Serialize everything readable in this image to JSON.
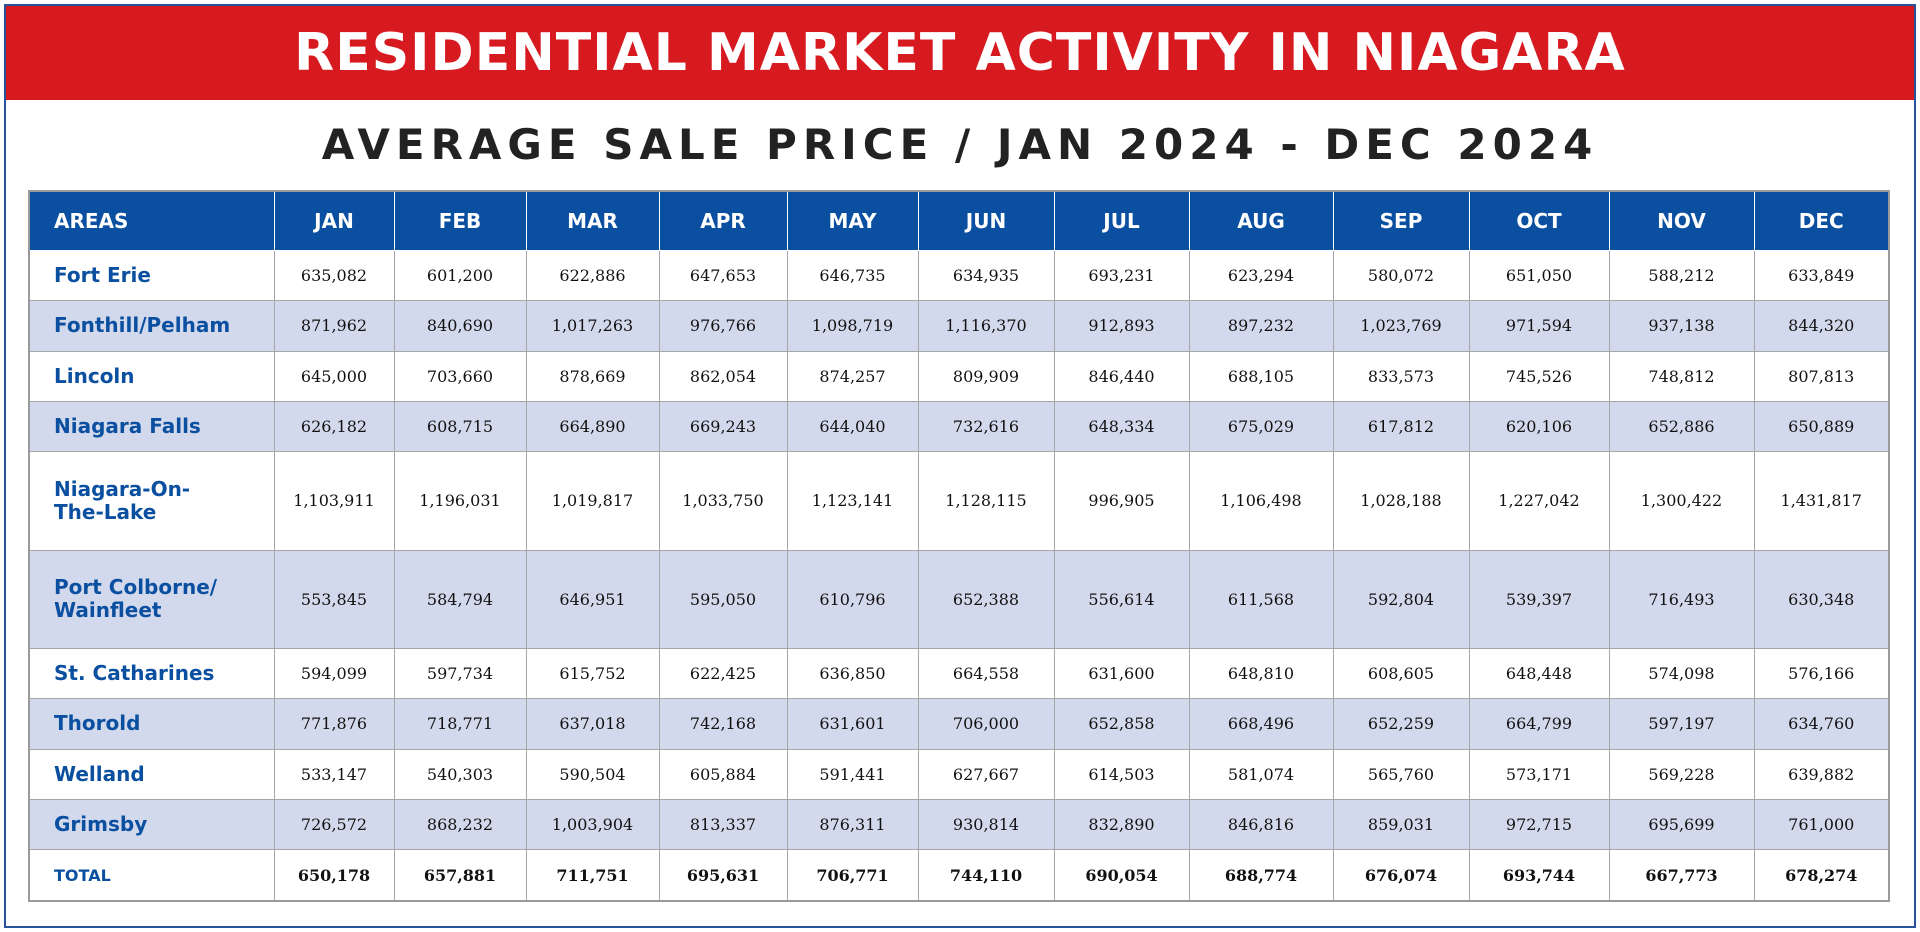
{
  "title": "RESIDENTIAL MARKET ACTIVITY IN NIAGARA",
  "subtitle": "AVERAGE SALE PRICE / JAN 2024 - DEC 2024",
  "colors": {
    "banner": "#d71920",
    "header": "#0a4fa0",
    "alt_row": "#d3d9ec",
    "area_text": "#0a4fa0"
  },
  "table": {
    "headers": [
      "AREAS",
      "JAN",
      "FEB",
      "MAR",
      "APR",
      "MAY",
      "JUN",
      "JUL",
      "AUG",
      "SEP",
      "OCT",
      "NOV",
      "DEC"
    ],
    "rows": [
      {
        "area": [
          "Fort Erie"
        ],
        "values": [
          "635,082",
          "601,200",
          "622,886",
          "647,653",
          "646,735",
          "634,935",
          "693,231",
          "623,294",
          "580,072",
          "651,050",
          "588,212",
          "633,849"
        ]
      },
      {
        "area": [
          "Fonthill/Pelham"
        ],
        "values": [
          "871,962",
          "840,690",
          "1,017,263",
          "976,766",
          "1,098,719",
          "1,116,370",
          "912,893",
          "897,232",
          "1,023,769",
          "971,594",
          "937,138",
          "844,320"
        ]
      },
      {
        "area": [
          "Lincoln"
        ],
        "values": [
          "645,000",
          "703,660",
          "878,669",
          "862,054",
          "874,257",
          "809,909",
          "846,440",
          "688,105",
          "833,573",
          "745,526",
          "748,812",
          "807,813"
        ]
      },
      {
        "area": [
          "Niagara Falls"
        ],
        "values": [
          "626,182",
          "608,715",
          "664,890",
          "669,243",
          "644,040",
          "732,616",
          "648,334",
          "675,029",
          "617,812",
          "620,106",
          "652,886",
          "650,889"
        ]
      },
      {
        "area": [
          "Niagara-On-",
          "The-Lake"
        ],
        "values": [
          "1,103,911",
          "1,196,031",
          "1,019,817",
          "1,033,750",
          "1,123,141",
          "1,128,115",
          "996,905",
          "1,106,498",
          "1,028,188",
          "1,227,042",
          "1,300,422",
          "1,431,817"
        ]
      },
      {
        "area": [
          "Port Colborne/",
          "Wainfleet"
        ],
        "values": [
          "553,845",
          "584,794",
          "646,951",
          "595,050",
          "610,796",
          "652,388",
          "556,614",
          "611,568",
          "592,804",
          "539,397",
          "716,493",
          "630,348"
        ]
      },
      {
        "area": [
          "St. Catharines"
        ],
        "values": [
          "594,099",
          "597,734",
          "615,752",
          "622,425",
          "636,850",
          "664,558",
          "631,600",
          "648,810",
          "608,605",
          "648,448",
          "574,098",
          "576,166"
        ]
      },
      {
        "area": [
          "Thorold"
        ],
        "values": [
          "771,876",
          "718,771",
          "637,018",
          "742,168",
          "631,601",
          "706,000",
          "652,858",
          "668,496",
          "652,259",
          "664,799",
          "597,197",
          "634,760"
        ]
      },
      {
        "area": [
          "Welland"
        ],
        "values": [
          "533,147",
          "540,303",
          "590,504",
          "605,884",
          "591,441",
          "627,667",
          "614,503",
          "581,074",
          "565,760",
          "573,171",
          "569,228",
          "639,882"
        ]
      },
      {
        "area": [
          "Grimsby"
        ],
        "values": [
          "726,572",
          "868,232",
          "1,003,904",
          "813,337",
          "876,311",
          "930,814",
          "832,890",
          "846,816",
          "859,031",
          "972,715",
          "695,699",
          "761,000"
        ]
      }
    ],
    "total": {
      "label": "TOTAL",
      "values": [
        "650,178",
        "657,881",
        "711,751",
        "695,631",
        "706,771",
        "744,110",
        "690,054",
        "688,774",
        "676,074",
        "693,744",
        "667,773",
        "678,274"
      ]
    }
  }
}
